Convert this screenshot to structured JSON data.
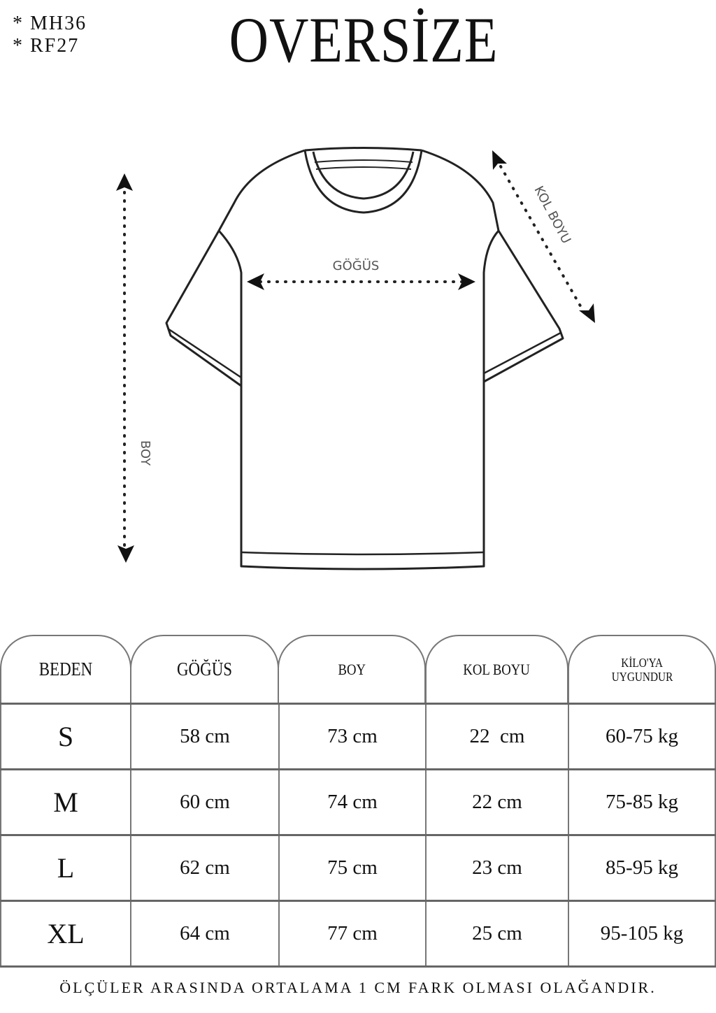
{
  "codes": [
    "* MH36",
    "* RF27"
  ],
  "title": "OVERSİZE",
  "diagram": {
    "chest_label": "GÖĞÜS",
    "sleeve_label": "KOL BOYU",
    "length_label": "BOY"
  },
  "table": {
    "headers": [
      "BEDEN",
      "GÖĞÜS",
      "BOY",
      "KOL BOYU",
      "KİLO'YA",
      "UYGUNDUR"
    ],
    "rows": [
      [
        "S",
        "58 cm",
        "73 cm",
        "22  cm",
        "60-75 kg"
      ],
      [
        "M",
        "60 cm",
        "74 cm",
        "22 cm",
        "75-85 kg"
      ],
      [
        "L",
        "62 cm",
        "75 cm",
        "23 cm",
        "85-95 kg"
      ],
      [
        "XL",
        "64 cm",
        "77 cm",
        "25 cm",
        "95-105 kg"
      ]
    ]
  },
  "footer": "ÖLÇÜLER ARASINDA ORTALAMA 1 CM FARK OLMASI OLAĞANDIR."
}
